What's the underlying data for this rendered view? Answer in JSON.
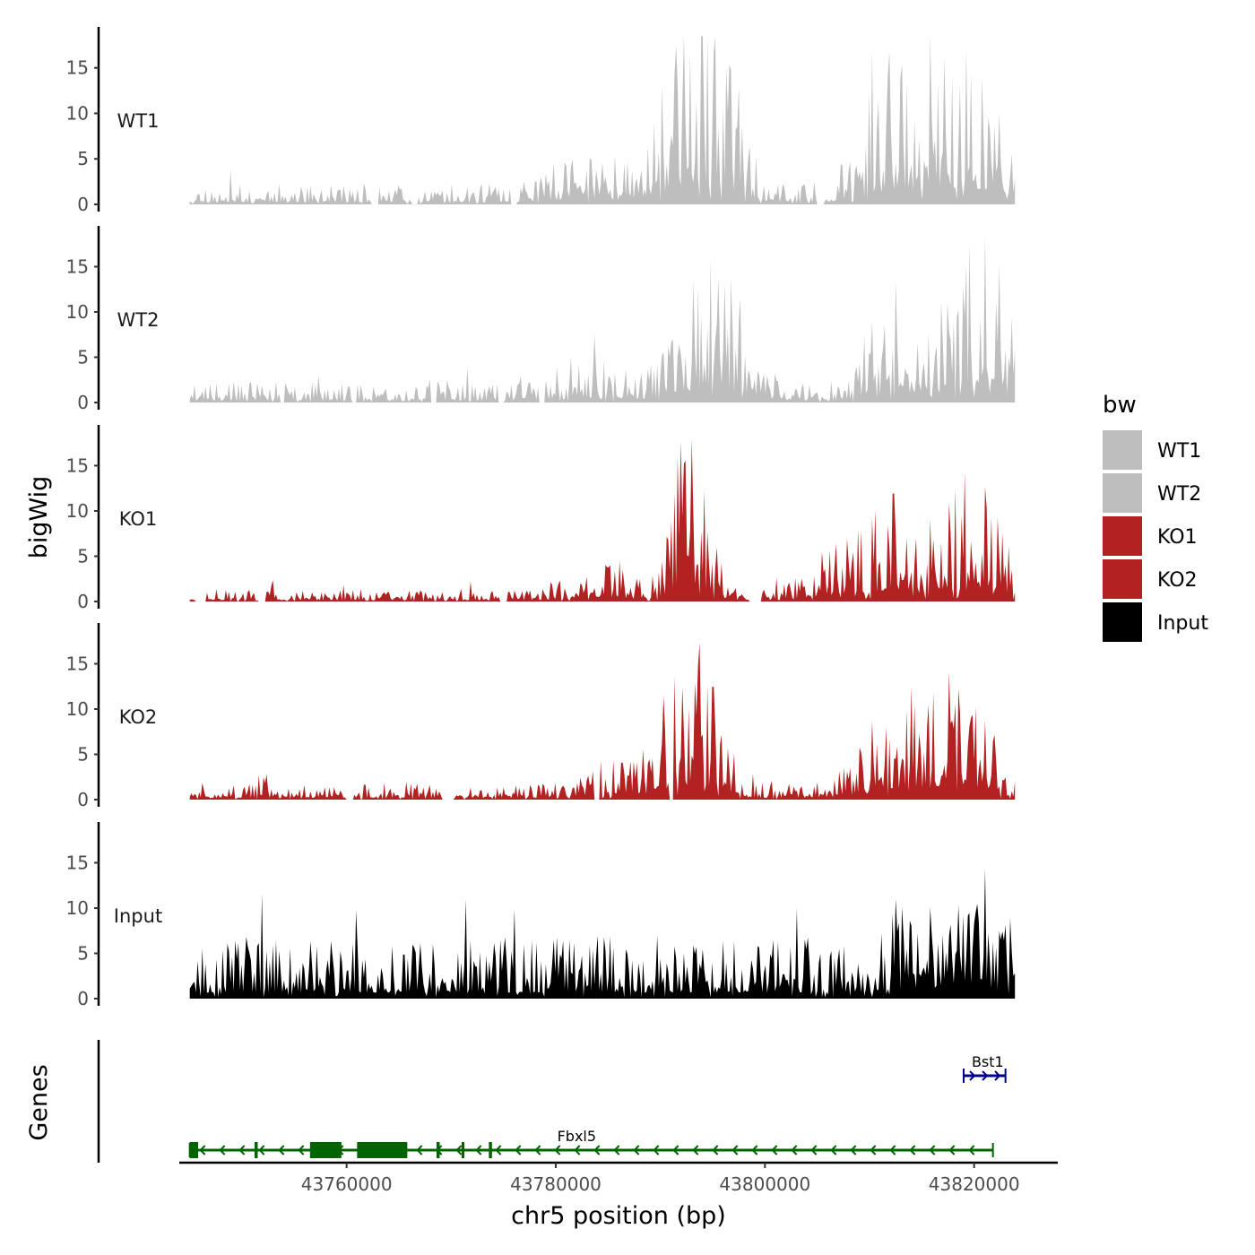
{
  "chart_data": {
    "type": "area",
    "y_axis_label": "bigWig",
    "genes_label": "Genes",
    "x_axis_label": "chr5 position (bp)",
    "x_range": [
      43744000,
      43828000
    ],
    "x_data_range": [
      43745000,
      43824000
    ],
    "x_ticks": [
      43760000,
      43780000,
      43800000,
      43820000
    ],
    "x_tick_labels": [
      "43760000",
      "43780000",
      "43800000",
      "43820000"
    ],
    "y_range": [
      0,
      19.5
    ],
    "y_ticks": [
      0,
      5,
      10,
      15
    ],
    "y_tick_labels": [
      "0",
      "5",
      "10",
      "15"
    ],
    "series": [
      {
        "name": "WT1",
        "color": "#bebebe",
        "seed": 11,
        "base": 1.5,
        "peaks": [
          [
            43792000,
            11,
            2500
          ],
          [
            43796000,
            8,
            2000
          ],
          [
            43812000,
            9,
            2500
          ],
          [
            43818000,
            10,
            2500
          ],
          [
            43822000,
            6,
            1500
          ],
          [
            43783000,
            2.5,
            3000
          ]
        ],
        "zero_bins": [
          [
            43762400,
            43763000
          ],
          [
            43766300,
            43766800
          ],
          [
            43775700,
            43776200
          ],
          [
            43805000,
            43805700
          ]
        ]
      },
      {
        "name": "WT2",
        "color": "#bebebe",
        "seed": 23,
        "base": 1.5,
        "peaks": [
          [
            43794000,
            7,
            2500
          ],
          [
            43797000,
            5,
            2000
          ],
          [
            43813000,
            5,
            2500
          ],
          [
            43819000,
            6,
            2500
          ],
          [
            43821500,
            10,
            1500
          ],
          [
            43783000,
            2,
            3000
          ]
        ],
        "zero_bins": [
          [
            43753600,
            43754000
          ],
          [
            43760600,
            43761000
          ],
          [
            43768000,
            43768600
          ],
          [
            43774500,
            43775000
          ],
          [
            43778400,
            43779000
          ]
        ]
      },
      {
        "name": "KO1",
        "color": "#b22222",
        "seed": 37,
        "base": 0.9,
        "peaks": [
          [
            43792000,
            10,
            1200
          ],
          [
            43794000,
            6,
            1200
          ],
          [
            43806000,
            3,
            2000
          ],
          [
            43812000,
            7,
            2500
          ],
          [
            43817000,
            6,
            2500
          ],
          [
            43821000,
            7,
            2000
          ],
          [
            43784000,
            2.5,
            2500
          ]
        ],
        "zero_bins": [
          [
            43745500,
            43746500
          ],
          [
            43751500,
            43752200
          ],
          [
            43774700,
            43775200
          ],
          [
            43798500,
            43799700
          ]
        ]
      },
      {
        "name": "KO2",
        "color": "#b22222",
        "seed": 51,
        "base": 1.2,
        "peaks": [
          [
            43792000,
            10,
            1800
          ],
          [
            43795000,
            5,
            1500
          ],
          [
            43812000,
            6,
            2500
          ],
          [
            43816000,
            4,
            2000
          ],
          [
            43819500,
            8,
            2000
          ],
          [
            43786000,
            2,
            2500
          ]
        ],
        "zero_bins": [
          [
            43760000,
            43760600
          ],
          [
            43769200,
            43770200
          ],
          [
            43783700,
            43784200
          ],
          [
            43790800,
            43791200
          ]
        ]
      },
      {
        "name": "Input",
        "color": "#000000",
        "seed": 67,
        "base": 4.5,
        "peaks": [
          [
            43819000,
            4,
            3000
          ],
          [
            43815000,
            2,
            3000
          ]
        ],
        "zero_bins": []
      }
    ],
    "genes": [
      {
        "name": "Fbxl5",
        "strand": "-",
        "color": "#006400",
        "row": 2,
        "start": 43745000,
        "end": 43821800,
        "exons": [
          [
            43745000,
            43745800
          ],
          [
            43751200,
            43751500
          ],
          [
            43756500,
            43759500
          ],
          [
            43761000,
            43765800
          ],
          [
            43768600,
            43768900
          ],
          [
            43771000,
            43771200
          ],
          [
            43773600,
            43773900
          ]
        ],
        "label_pos": 43782000
      },
      {
        "name": "Bst1",
        "strand": "+",
        "color": "#00008b",
        "row": 1,
        "start": 43819000,
        "end": 43823000,
        "exons": [],
        "label_pos": 43821300
      }
    ],
    "legend": {
      "title": "bw",
      "entries": [
        {
          "label": "WT1",
          "color": "#bebebe"
        },
        {
          "label": "WT2",
          "color": "#bebebe"
        },
        {
          "label": "KO1",
          "color": "#b22222"
        },
        {
          "label": "KO2",
          "color": "#b22222"
        },
        {
          "label": "Input",
          "color": "#000000"
        }
      ]
    }
  }
}
